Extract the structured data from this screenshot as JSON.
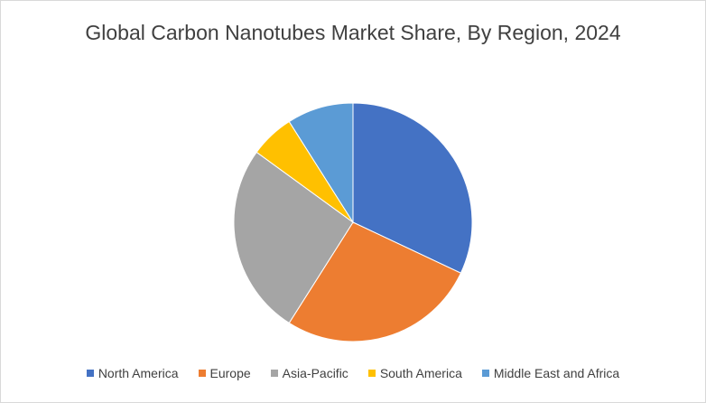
{
  "chart_data": {
    "type": "pie",
    "title": "Global Carbon Nanotubes Market Share, By Region, 2024",
    "categories": [
      "North America",
      "Europe",
      "Asia-Pacific",
      "South America",
      "Middle East and Africa"
    ],
    "values": [
      32,
      27,
      26,
      6,
      9
    ],
    "colors": [
      "#4472c4",
      "#ed7d31",
      "#a5a5a5",
      "#ffc000",
      "#5b9bd5"
    ],
    "legend": "bottom"
  }
}
